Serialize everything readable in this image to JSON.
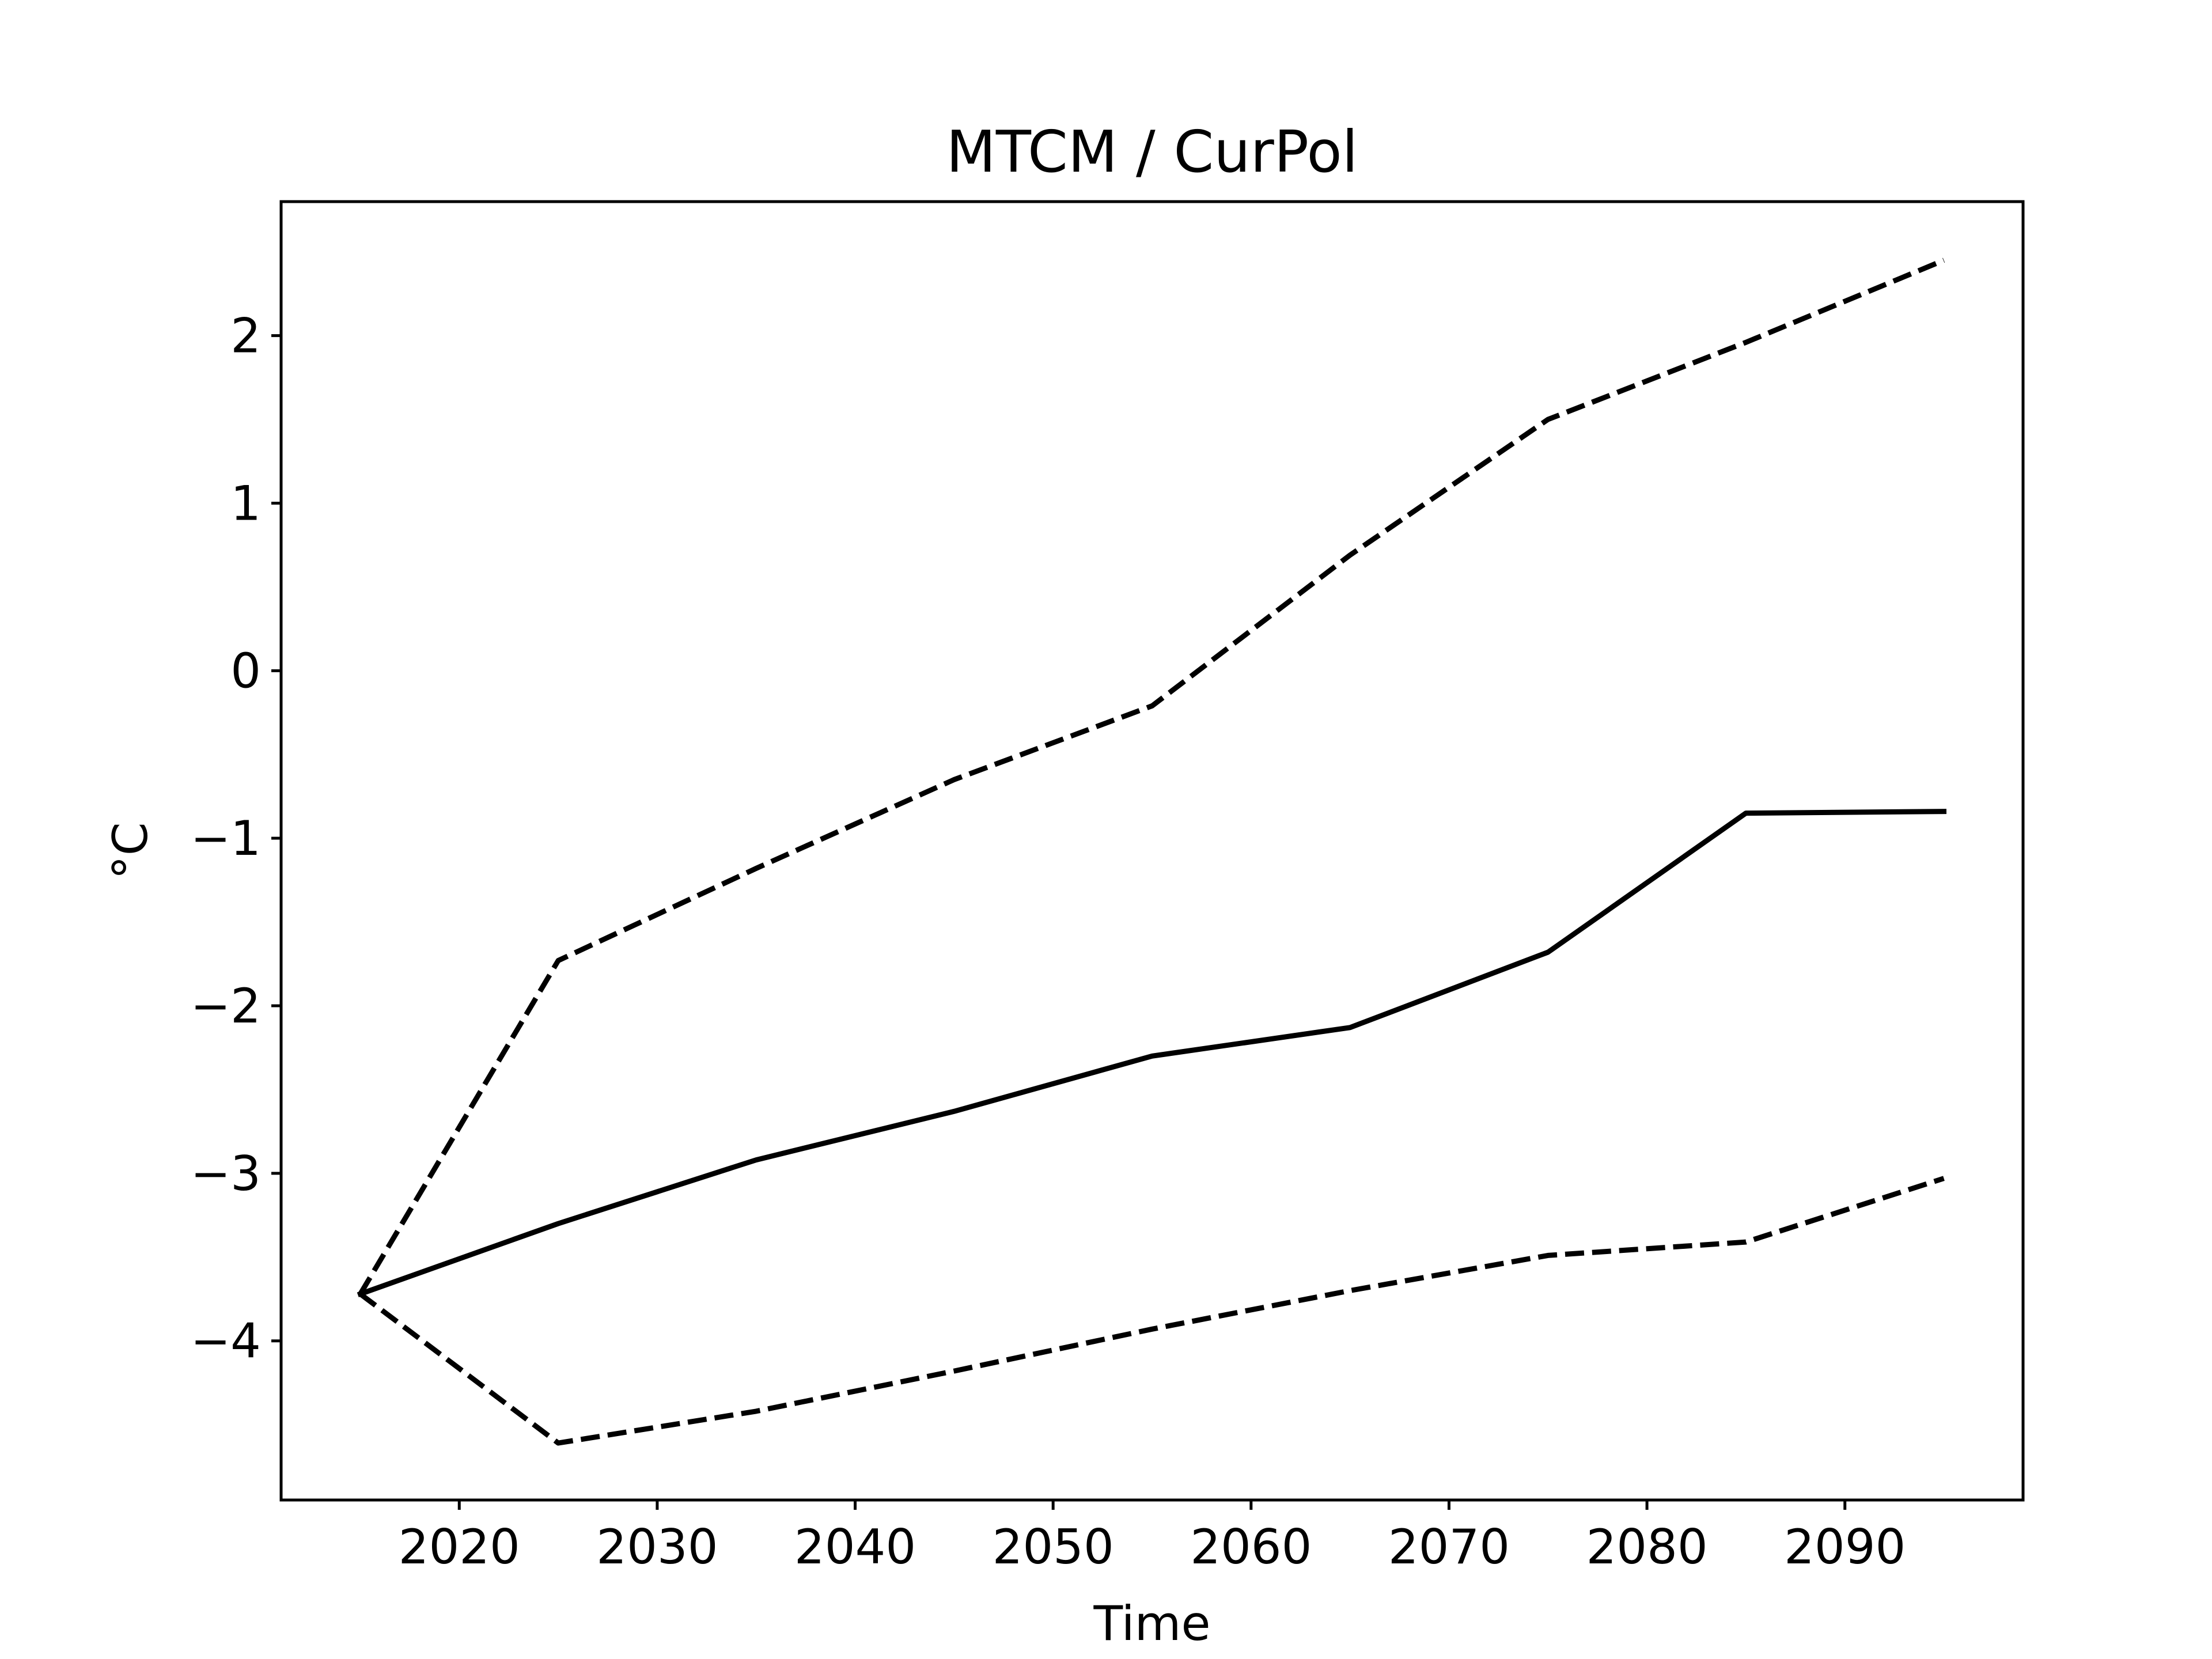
{
  "chart_data": {
    "type": "line",
    "title": "MTCM / CurPol",
    "xlabel": "Time",
    "ylabel": "°C",
    "xlim": [
      2011,
      2099
    ],
    "ylim": [
      -4.95,
      2.8
    ],
    "xticks": [
      2020,
      2030,
      2040,
      2050,
      2060,
      2070,
      2080,
      2090
    ],
    "xtick_labels": [
      "2020",
      "2030",
      "2040",
      "2050",
      "2060",
      "2070",
      "2080",
      "2090"
    ],
    "yticks": [
      2,
      1,
      0,
      -1,
      -2,
      -3,
      -4
    ],
    "ytick_labels": [
      "2",
      "1",
      "0",
      "−1",
      "−2",
      "−3",
      "−4"
    ],
    "grid": false,
    "legend": null,
    "line_color": "#000000",
    "series": [
      {
        "style": "dashed",
        "x": [
          2015,
          2025,
          2035,
          2045,
          2055,
          2065,
          2075,
          2085,
          2095
        ],
        "y": [
          -3.72,
          -1.73,
          -1.18,
          -0.65,
          -0.21,
          0.69,
          1.5,
          1.96,
          2.45
        ]
      },
      {
        "style": "solid",
        "x": [
          2015,
          2025,
          2035,
          2045,
          2055,
          2065,
          2075,
          2085,
          2095
        ],
        "y": [
          -3.72,
          -3.3,
          -2.92,
          -2.63,
          -2.3,
          -2.13,
          -1.68,
          -0.85,
          -0.84
        ]
      },
      {
        "style": "dashed",
        "x": [
          2015,
          2025,
          2035,
          2045,
          2055,
          2065,
          2075,
          2085,
          2095
        ],
        "y": [
          -3.72,
          -4.61,
          -4.42,
          -4.18,
          -3.93,
          -3.7,
          -3.49,
          -3.41,
          -3.03
        ]
      }
    ]
  }
}
